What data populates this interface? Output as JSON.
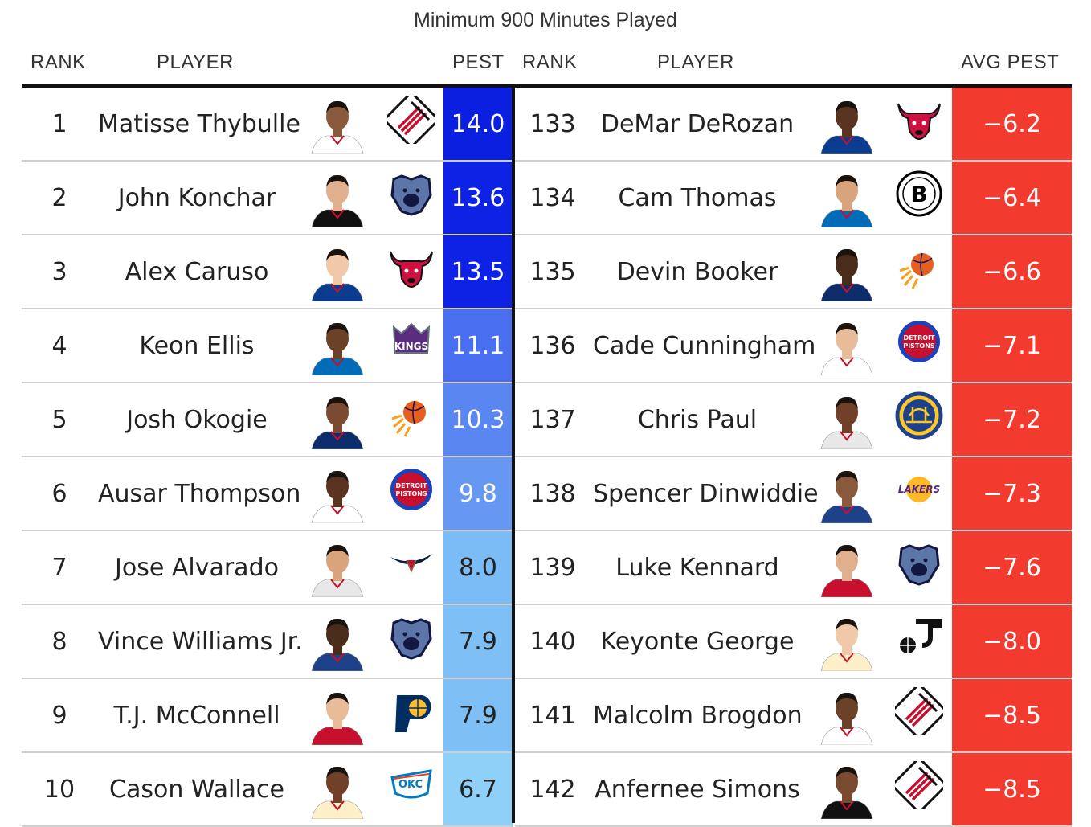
{
  "subtitle": "Minimum 900 Minutes Played",
  "headers": {
    "left_rank": "RANK",
    "left_player": "PLAYER",
    "left_value": "PEST",
    "right_rank": "RANK",
    "right_player": "PLAYER",
    "right_value": "AVG PEST"
  },
  "colors": {
    "negative_fill": "#f23a2f",
    "divider": "#111111"
  },
  "left": [
    {
      "rank": "1",
      "player": "Matisse Thybulle",
      "value": "14.0",
      "team_logo": "trail-blazers-logo",
      "fill": "#0a1fe0",
      "text_color": "#ffffff"
    },
    {
      "rank": "2",
      "player": "John Konchar",
      "value": "13.6",
      "team_logo": "grizzlies-logo",
      "fill": "#0d22e4",
      "text_color": "#ffffff"
    },
    {
      "rank": "3",
      "player": "Alex Caruso",
      "value": "13.5",
      "team_logo": "bulls-logo",
      "fill": "#0d22e4",
      "text_color": "#ffffff"
    },
    {
      "rank": "4",
      "player": "Keon Ellis",
      "value": "11.1",
      "team_logo": "kings-logo",
      "fill": "#4a6ef0",
      "text_color": "#ffffff"
    },
    {
      "rank": "5",
      "player": "Josh Okogie",
      "value": "10.3",
      "team_logo": "suns-logo",
      "fill": "#5a86f2",
      "text_color": "#ffffff"
    },
    {
      "rank": "6",
      "player": "Ausar Thompson",
      "value": "9.8",
      "team_logo": "pistons-logo",
      "fill": "#6698f3",
      "text_color": "#ffffff"
    },
    {
      "rank": "7",
      "player": "Jose Alvarado",
      "value": "8.0",
      "team_logo": "pelicans-logo",
      "fill": "#7cbcf6",
      "text_color": "#222222"
    },
    {
      "rank": "8",
      "player": "Vince Williams Jr.",
      "value": "7.9",
      "team_logo": "grizzlies-logo",
      "fill": "#7ec0f6",
      "text_color": "#222222"
    },
    {
      "rank": "9",
      "player": "T.J. McConnell",
      "value": "7.9",
      "team_logo": "pacers-logo",
      "fill": "#7ec0f6",
      "text_color": "#222222"
    },
    {
      "rank": "10",
      "player": "Cason Wallace",
      "value": "6.7",
      "team_logo": "thunder-logo",
      "fill": "#8fd0f8",
      "text_color": "#222222"
    }
  ],
  "right": [
    {
      "rank": "133",
      "player": "DeMar DeRozan",
      "value": "−6.2",
      "team_logo": "bulls-logo"
    },
    {
      "rank": "134",
      "player": "Cam Thomas",
      "value": "−6.4",
      "team_logo": "nets-logo"
    },
    {
      "rank": "135",
      "player": "Devin Booker",
      "value": "−6.6",
      "team_logo": "suns-logo"
    },
    {
      "rank": "136",
      "player": "Cade Cunningham",
      "value": "−7.1",
      "team_logo": "pistons-logo"
    },
    {
      "rank": "137",
      "player": "Chris Paul",
      "value": "−7.2",
      "team_logo": "warriors-logo"
    },
    {
      "rank": "138",
      "player": "Spencer Dinwiddie",
      "value": "−7.3",
      "team_logo": "lakers-logo"
    },
    {
      "rank": "139",
      "player": "Luke Kennard",
      "value": "−7.6",
      "team_logo": "grizzlies-logo"
    },
    {
      "rank": "140",
      "player": "Keyonte George",
      "value": "−8.0",
      "team_logo": "jazz-logo"
    },
    {
      "rank": "141",
      "player": "Malcolm Brogdon",
      "value": "−8.5",
      "team_logo": "trail-blazers-logo"
    },
    {
      "rank": "142",
      "player": "Anfernee Simons",
      "value": "−8.5",
      "team_logo": "trail-blazers-logo"
    }
  ]
}
